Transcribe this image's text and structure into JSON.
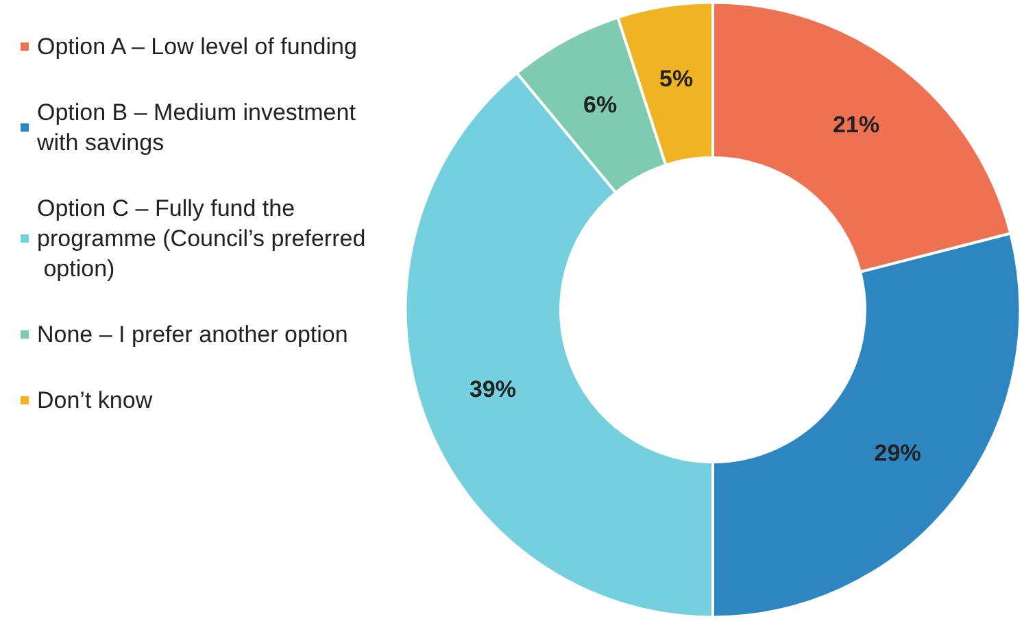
{
  "chart_data": {
    "type": "donut",
    "categories": [
      "Option A – Low level of funding",
      "Option B – Medium investment with savings",
      "Option C – Fully fund the programme (Council’s preferred option)",
      "None – I prefer another option",
      "Don’t know"
    ],
    "values": [
      21,
      29,
      39,
      6,
      5
    ],
    "colors": [
      "#ee7152",
      "#2e86c1",
      "#74cfdf",
      "#7fcbb1",
      "#f0b324"
    ],
    "value_labels": [
      "21%",
      "29%",
      "39%",
      "6%",
      "5%"
    ],
    "legend": "left"
  }
}
